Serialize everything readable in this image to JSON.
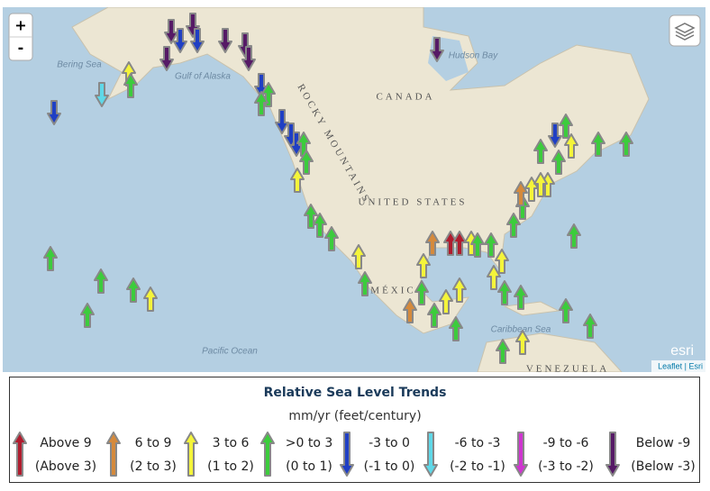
{
  "map": {
    "labels": {
      "bering_sea": "Bering Sea",
      "gulf_of_alaska": "Gulf of Alaska",
      "rocky_mountains": "ROCKY MOUNTAINS",
      "canada": "CANADA",
      "hudson_bay": "Hudson Bay",
      "united_states": "UNITED STATES",
      "mexico": "MÉXICO",
      "pacific_ocean": "Pacific Ocean",
      "caribbean_sea": "Caribbean Sea",
      "venezuela": "VENEZUELA"
    },
    "zoom_in": "+",
    "zoom_out": "-",
    "logo": "esri",
    "attribution": "Leaflet | Esri"
  },
  "legend": {
    "title": "Relative Sea Level Trends",
    "subtitle": "mm/yr (feet/century)",
    "items": [
      {
        "label": "Above 9",
        "sublabel": "(Above 3)",
        "color": "#b01c2e"
      },
      {
        "label": "6 to 9",
        "sublabel": "(2 to 3)",
        "color": "#d58a3c"
      },
      {
        "label": "3 to 6",
        "sublabel": "(1 to 2)",
        "color": "#f4f43a"
      },
      {
        "label": ">0 to 3",
        "sublabel": "(0 to 1)",
        "color": "#3ccc3c"
      },
      {
        "label": "-3 to 0",
        "sublabel": "(-1 to 0)",
        "color": "#1f3fc4"
      },
      {
        "label": "-6 to -3",
        "sublabel": "(-2 to -1)",
        "color": "#5fd8e8"
      },
      {
        "label": "-9 to -6",
        "sublabel": "(-3 to -2)",
        "color": "#cf35d0"
      },
      {
        "label": "Below -9",
        "sublabel": "(Below -3)",
        "color": "#561a66"
      }
    ]
  }
}
